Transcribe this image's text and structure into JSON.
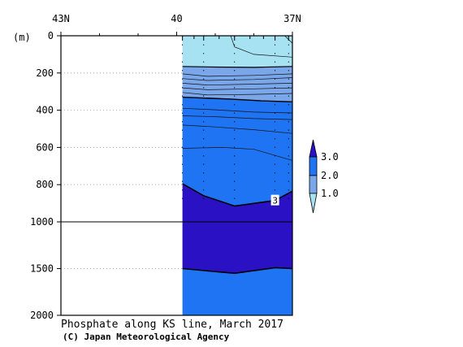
{
  "chart_data": {
    "type": "heatmap",
    "title": "Phosphate along KS line, March 2017",
    "credit": "(C) Japan Meteorological Agency",
    "x_axis": {
      "label": "",
      "ticks": [
        {
          "value": 43,
          "label": "43N"
        },
        {
          "value": 40,
          "label": "40"
        },
        {
          "value": 37,
          "label": "37N"
        }
      ],
      "range": [
        43,
        37
      ]
    },
    "y_axis": {
      "label": "(m)",
      "ticks": [
        {
          "value": 0,
          "label": "0"
        },
        {
          "value": 200,
          "label": "200"
        },
        {
          "value": 400,
          "label": "400"
        },
        {
          "value": 600,
          "label": "600"
        },
        {
          "value": 800,
          "label": "800"
        },
        {
          "value": 1000,
          "label": "1000"
        },
        {
          "value": 1500,
          "label": "1500"
        },
        {
          "value": 2000,
          "label": "2000"
        }
      ],
      "inverted": true,
      "scale": "piecewise: 0-1000 m linear (upper part), 1000-2000 m compressed (lower part)"
    },
    "data_extent_lat": [
      39.85,
      37.0
    ],
    "station_lats": [
      39.85,
      39.3,
      38.5,
      37.45,
      37.1
    ],
    "colorbar": {
      "levels": [
        {
          "label": "1.0",
          "value": 1.0
        },
        {
          "label": "2.0",
          "value": 2.0
        },
        {
          "label": "3.0",
          "value": 3.0
        }
      ],
      "colors": {
        "below_1": "#a6e2f2",
        "1_to_2": "#7aa6ea",
        "2_to_3": "#1e74f2",
        "above_3": "#2a12c4"
      }
    },
    "contour_label": "3",
    "contours": {
      "boundary_1_0": [
        [
          37.0,
          165
        ],
        [
          38.0,
          170
        ],
        [
          39.0,
          168
        ],
        [
          39.85,
          165
        ]
      ],
      "boundary_2_0": [
        [
          37.0,
          355
        ],
        [
          37.8,
          350
        ],
        [
          38.6,
          340
        ],
        [
          39.85,
          330
        ]
      ],
      "boundary_3_upper": [
        [
          37.0,
          835
        ],
        [
          37.45,
          885
        ],
        [
          38.5,
          915
        ],
        [
          39.3,
          860
        ],
        [
          39.85,
          795
        ]
      ],
      "boundary_3_lower": [
        [
          37.0,
          1500
        ],
        [
          37.45,
          1490
        ],
        [
          38.5,
          1550
        ],
        [
          39.85,
          1500
        ]
      ],
      "internal": [
        [
          [
            37.0,
            115
          ],
          [
            38.0,
            100
          ],
          [
            38.5,
            60
          ],
          [
            38.6,
            0
          ]
        ],
        [
          [
            37.0,
            40
          ],
          [
            37.2,
            0
          ]
        ],
        [
          [
            37.0,
            205
          ],
          [
            38.0,
            213
          ],
          [
            39.2,
            218
          ],
          [
            39.85,
            205
          ]
        ],
        [
          [
            37.0,
            225
          ],
          [
            38.0,
            235
          ],
          [
            39.2,
            240
          ],
          [
            39.85,
            230
          ]
        ],
        [
          [
            37.0,
            255
          ],
          [
            38.0,
            260
          ],
          [
            39.2,
            265
          ],
          [
            39.85,
            255
          ]
        ],
        [
          [
            37.0,
            280
          ],
          [
            38.0,
            285
          ],
          [
            39.2,
            290
          ],
          [
            39.85,
            280
          ]
        ],
        [
          [
            37.0,
            310
          ],
          [
            38.0,
            315
          ],
          [
            39.2,
            318
          ],
          [
            39.85,
            305
          ]
        ],
        [
          [
            37.0,
            415
          ],
          [
            38.0,
            410
          ],
          [
            39.0,
            398
          ],
          [
            39.85,
            390
          ]
        ],
        [
          [
            37.0,
            450
          ],
          [
            38.0,
            445
          ],
          [
            39.0,
            435
          ],
          [
            39.85,
            430
          ]
        ],
        [
          [
            37.0,
            525
          ],
          [
            38.0,
            505
          ],
          [
            39.0,
            490
          ],
          [
            39.85,
            480
          ]
        ],
        [
          [
            37.0,
            670
          ],
          [
            38.0,
            610
          ],
          [
            38.8,
            600
          ],
          [
            39.85,
            605
          ]
        ]
      ]
    },
    "series": []
  }
}
